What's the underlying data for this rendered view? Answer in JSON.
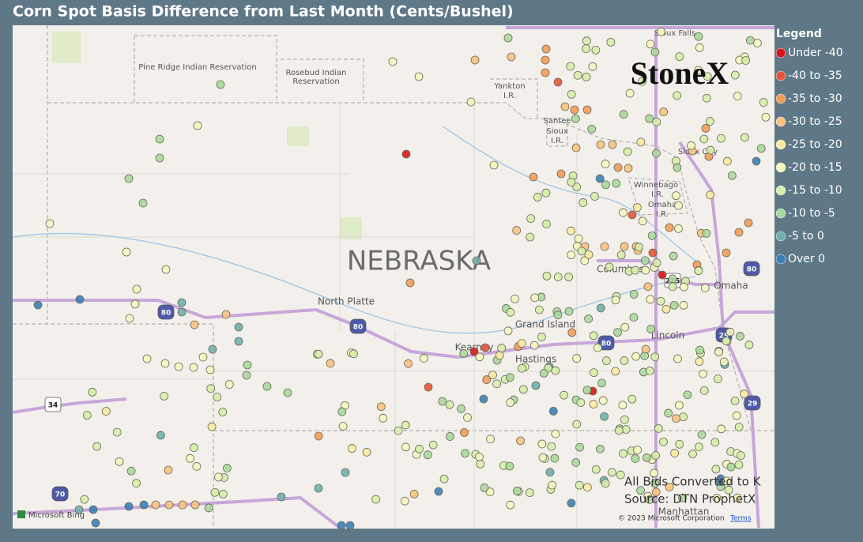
{
  "title": "Corn Spot Basis Difference from Last Month (Cents/Bushel)",
  "legend": {
    "title": "Legend",
    "items": [
      {
        "label": "Under -40",
        "color": "#d7191c"
      },
      {
        "label": "-40 to -35",
        "color": "#e8553a"
      },
      {
        "label": "-35 to -30",
        "color": "#f39c5a"
      },
      {
        "label": "-30 to -25",
        "color": "#fbc27f"
      },
      {
        "label": "-25 to -20",
        "color": "#fde9a0"
      },
      {
        "label": "-20 to -15",
        "color": "#f4f7bf"
      },
      {
        "label": "-15 to -10",
        "color": "#d6eeaa"
      },
      {
        "label": "-10 to -5",
        "color": "#a9d99b"
      },
      {
        "label": "-5 to 0",
        "color": "#6fb0ae"
      },
      {
        "label": "Over 0",
        "color": "#3a7fb8"
      }
    ]
  },
  "map": {
    "state_label": "NEBRASKA",
    "places": [
      "Pine Ridge Indian Reservation",
      "Rosebud Indian",
      "Reservation",
      "Yankton",
      "I.R.",
      "Santee",
      "Sioux",
      "I.R.",
      "Sioux Falls",
      "Sioux City",
      "Winnebago",
      "I.R.",
      "Omaha",
      "I.R.",
      "Columbus",
      "Omaha",
      "North Platte",
      "Grand Island",
      "Kearney",
      "Hastings",
      "Lincoln",
      "Manhattan"
    ],
    "shields": [
      "80",
      "80",
      "80",
      "80",
      "29",
      "29",
      "34",
      "70",
      "275"
    ]
  },
  "logo": "StoneX",
  "notes": [
    "All Bids Converted to K",
    "Source: DTN ProphetX"
  ],
  "attribution": {
    "provider": "Microsoft Bing",
    "copyright": "© 2023 Microsoft Corporation",
    "terms": "Terms"
  }
}
